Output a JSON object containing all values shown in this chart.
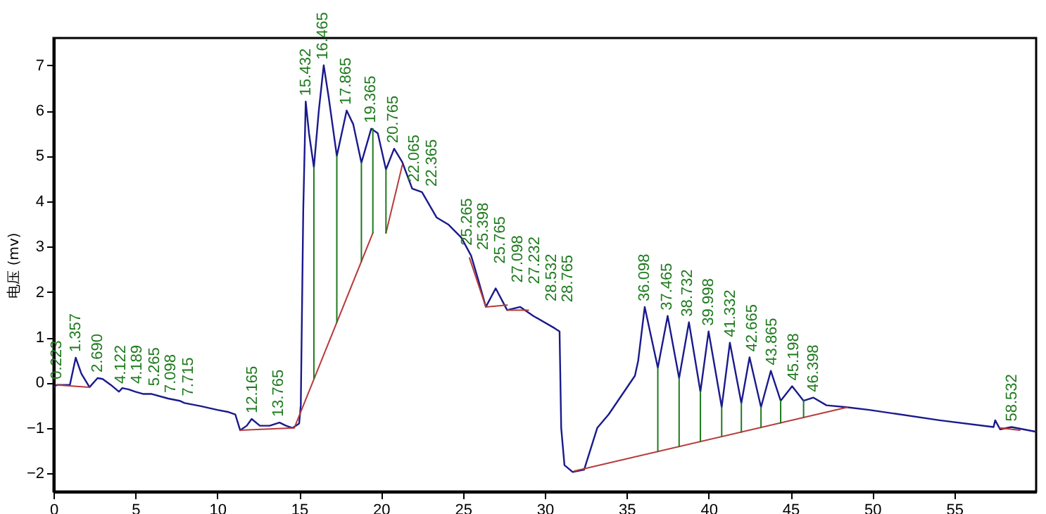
{
  "chart_data": {
    "type": "line",
    "ylabel": "电压 (mv)",
    "xlim": [
      0,
      60
    ],
    "ylim": [
      -2.4,
      7.6
    ],
    "xticks": [
      0,
      5,
      10,
      15,
      20,
      25,
      30,
      35,
      40,
      45,
      50,
      55
    ],
    "yticks": [
      -2,
      -1,
      0,
      1,
      2,
      3,
      4,
      5,
      6,
      7
    ],
    "grid": false,
    "marker": "none",
    "line_style": "solid",
    "series": [
      {
        "color": "#1a1a8c",
        "x": [
          0,
          0.2,
          0.5,
          1,
          1.357,
          1.7,
          2.2,
          2.69,
          3,
          3.5,
          4,
          4.2,
          4.6,
          5,
          5.5,
          6,
          7,
          7.7,
          8,
          9,
          10,
          10.7,
          11.1,
          11.4,
          11.8,
          12.1,
          12.6,
          13.2,
          13.8,
          14.2,
          14.6,
          15,
          15.1,
          15.25,
          15.4,
          15.6,
          15.9,
          16.2,
          16.5,
          16.8,
          17.3,
          17.9,
          18.3,
          18.8,
          19.4,
          19.8,
          20.3,
          20.8,
          21.3,
          21.9,
          22.5,
          23.4,
          24.1,
          24.9,
          25.5,
          25.9,
          26.4,
          27,
          27.7,
          28.5,
          29.3,
          30.6,
          30.9,
          31,
          31.2,
          31.7,
          32.4,
          33.2,
          33.9,
          35.5,
          35.7,
          36.1,
          36.9,
          37.5,
          38.2,
          38.8,
          39.5,
          40,
          40.8,
          41.3,
          42,
          42.5,
          43.2,
          43.8,
          44.4,
          45.1,
          45.8,
          46.4,
          47.2,
          48.4,
          49.8,
          54.1,
          57.4,
          57.5,
          57.8,
          58.5,
          59.95
        ],
        "values": [
          -0.1,
          -0.05,
          -0.05,
          -0.05,
          0.55,
          0.2,
          -0.1,
          0.1,
          0.08,
          -0.05,
          -0.2,
          -0.12,
          -0.15,
          -0.2,
          -0.25,
          -0.25,
          -0.35,
          -0.4,
          -0.45,
          -0.52,
          -0.6,
          -0.65,
          -0.7,
          -1.05,
          -0.95,
          -0.8,
          -0.95,
          -0.95,
          -0.88,
          -0.95,
          -1.0,
          -0.9,
          -0.5,
          3.8,
          6.2,
          5.5,
          4.75,
          6.0,
          7.0,
          6.3,
          5.0,
          6.0,
          5.7,
          4.85,
          5.6,
          5.5,
          4.7,
          5.16,
          4.86,
          4.28,
          4.2,
          3.64,
          3.49,
          3.2,
          2.8,
          2.31,
          1.67,
          2.08,
          1.6,
          1.67,
          1.47,
          1.2,
          1.13,
          -1.0,
          -1.82,
          -1.97,
          -1.92,
          -1.0,
          -0.7,
          0.15,
          0.48,
          1.67,
          0.33,
          1.47,
          0.1,
          1.33,
          -0.2,
          1.13,
          -0.54,
          0.88,
          -0.45,
          0.56,
          -0.54,
          0.26,
          -0.4,
          -0.08,
          -0.4,
          -0.33,
          -0.5,
          -0.54,
          -0.6,
          -0.83,
          -0.98,
          -0.83,
          -1.03,
          -0.98,
          -1.08
        ]
      },
      {
        "color": "#b83a3a",
        "x": [
          0.2,
          2.2,
          null,
          11.4,
          14.7,
          19.5,
          null,
          20.3,
          21.3,
          null,
          25.4,
          26.4,
          27.7,
          null,
          27.7,
          29.0,
          null,
          31.8,
          48.5,
          null,
          57.8,
          59
        ],
        "values": [
          -0.05,
          -0.1,
          null,
          -1.05,
          -1.0,
          3.3,
          null,
          3.3,
          4.8,
          null,
          2.75,
          1.67,
          1.71,
          null,
          1.6,
          1.6,
          null,
          -1.95,
          -0.54,
          null,
          -1.0,
          -1.05
        ]
      },
      {
        "color": "#1e7a1e",
        "x": [
          15.9,
          15.9,
          null,
          17.3,
          17.3,
          null,
          18.8,
          18.8,
          null,
          19.5,
          19.5,
          null,
          20.3,
          20.3,
          null,
          36.9,
          36.9,
          null,
          38.2,
          38.2,
          null,
          39.5,
          39.5,
          null,
          40.8,
          40.8,
          null,
          42.0,
          42.0,
          null,
          43.2,
          43.2,
          null,
          44.4,
          44.4,
          null,
          45.8,
          45.8
        ],
        "values": [
          0.08,
          4.75,
          null,
          1.33,
          5.0,
          null,
          2.67,
          4.85,
          null,
          3.3,
          5.6,
          null,
          3.3,
          4.7,
          null,
          -1.52,
          0.33,
          null,
          -1.41,
          0.1,
          null,
          -1.3,
          -0.2,
          null,
          -1.19,
          -0.54,
          null,
          -1.09,
          -0.45,
          null,
          -0.99,
          -0.54,
          null,
          -0.89,
          -0.4,
          null,
          -0.77,
          -0.4
        ]
      }
    ],
    "annotations": [
      {
        "text": "0.223",
        "x": 0.223,
        "y": -0.05
      },
      {
        "text": "1.357",
        "x": 1.357,
        "y": 0.55
      },
      {
        "text": "2.690",
        "x": 2.69,
        "y": 0.1
      },
      {
        "text": "4.122",
        "x": 4.122,
        "y": -0.15
      },
      {
        "text": "4.189",
        "x": 4.189,
        "y": -0.15
      },
      {
        "text": "5.265",
        "x": 5.265,
        "y": -0.2
      },
      {
        "text": "7.098",
        "x": 7.098,
        "y": -0.35
      },
      {
        "text": "7.715",
        "x": 7.715,
        "y": -0.42
      },
      {
        "text": "12.165",
        "x": 12.165,
        "y": -0.8
      },
      {
        "text": "13.765",
        "x": 13.765,
        "y": -0.88
      },
      {
        "text": "15.432",
        "x": 15.432,
        "y": 6.2
      },
      {
        "text": "16.465",
        "x": 16.465,
        "y": 7.0
      },
      {
        "text": "17.865",
        "x": 17.865,
        "y": 6.0
      },
      {
        "text": "19.365",
        "x": 19.365,
        "y": 5.6
      },
      {
        "text": "20.765",
        "x": 20.765,
        "y": 5.16
      },
      {
        "text": "22.065",
        "x": 22.065,
        "y": 4.3
      },
      {
        "text": "22.365",
        "x": 22.365,
        "y": 4.2
      },
      {
        "text": "25.265",
        "x": 25.265,
        "y": 2.9
      },
      {
        "text": "25.398",
        "x": 25.398,
        "y": 2.8
      },
      {
        "text": "25.765",
        "x": 25.765,
        "y": 2.5
      },
      {
        "text": "27.098",
        "x": 27.098,
        "y": 2.08
      },
      {
        "text": "27.232",
        "x": 27.232,
        "y": 2.05
      },
      {
        "text": "28.532",
        "x": 28.532,
        "y": 1.67
      },
      {
        "text": "28.765",
        "x": 28.765,
        "y": 1.65
      },
      {
        "text": "36.098",
        "x": 36.098,
        "y": 1.67
      },
      {
        "text": "37.465",
        "x": 37.465,
        "y": 1.47
      },
      {
        "text": "38.732",
        "x": 38.732,
        "y": 1.33
      },
      {
        "text": "39.998",
        "x": 39.998,
        "y": 1.13
      },
      {
        "text": "41.332",
        "x": 41.332,
        "y": 0.88
      },
      {
        "text": "42.665",
        "x": 42.665,
        "y": 0.56
      },
      {
        "text": "43.865",
        "x": 43.865,
        "y": 0.26
      },
      {
        "text": "45.198",
        "x": 45.198,
        "y": -0.08
      },
      {
        "text": "46.398",
        "x": 46.398,
        "y": -0.33
      },
      {
        "text": "58.532",
        "x": 58.532,
        "y": -0.98
      }
    ]
  }
}
